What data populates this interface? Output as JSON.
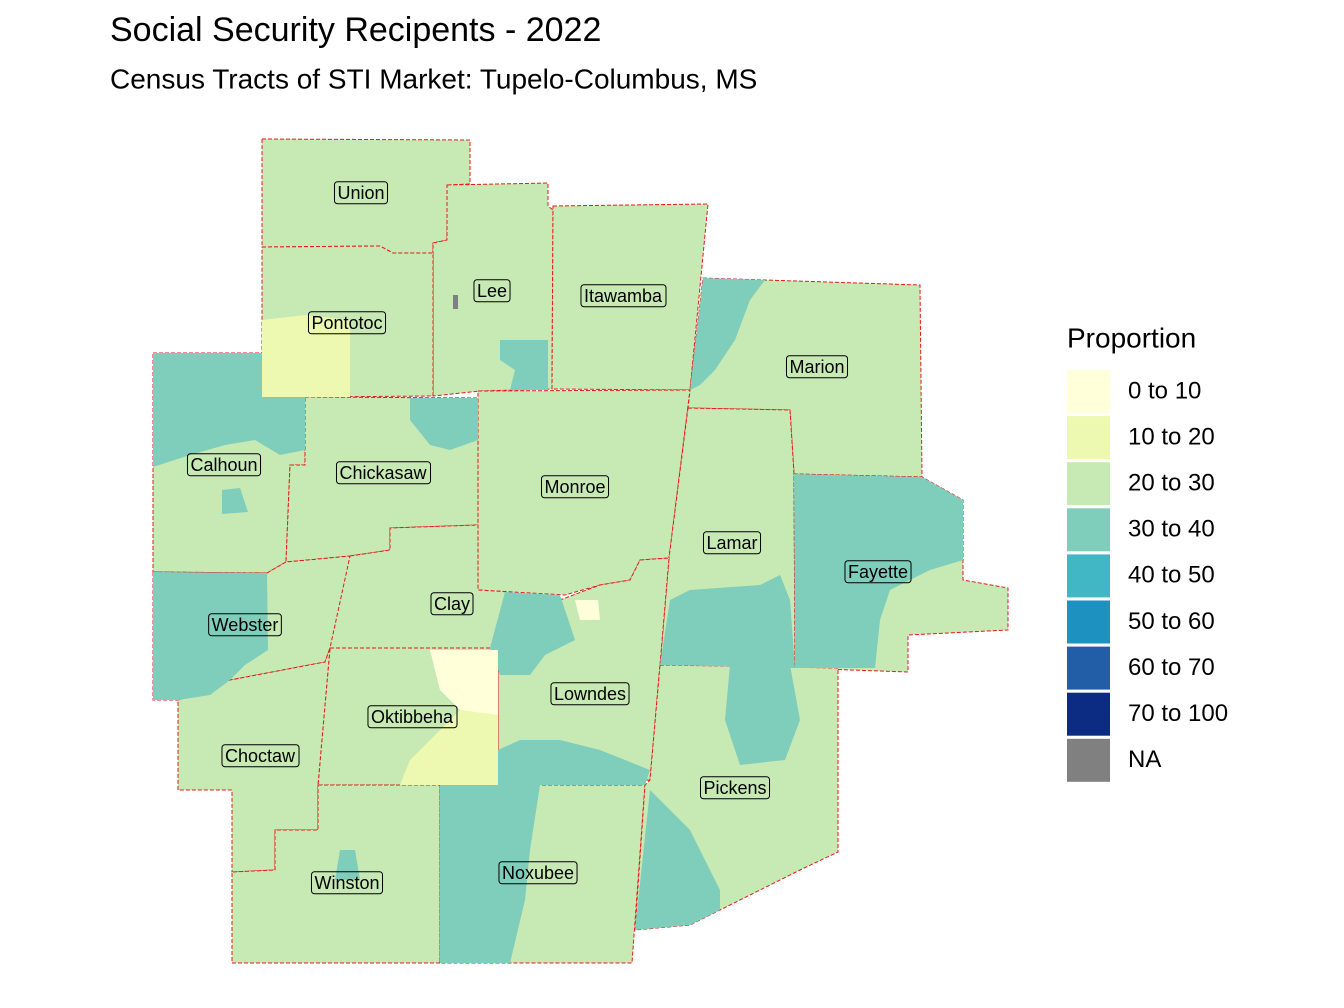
{
  "title": "Social Security Recipents - 2022",
  "subtitle": "Census Tracts of STI Market: Tupelo-Columbus, MS",
  "legend": {
    "title": "Proportion",
    "items": [
      {
        "label": "0 to 10",
        "color": "#ffffd9"
      },
      {
        "label": "10 to 20",
        "color": "#edf8b1"
      },
      {
        "label": "20 to 30",
        "color": "#c7e9b4"
      },
      {
        "label": "30 to 40",
        "color": "#7fcdbb"
      },
      {
        "label": "40 to 50",
        "color": "#41b6c4"
      },
      {
        "label": "50 to 60",
        "color": "#1d91c0"
      },
      {
        "label": "60 to 70",
        "color": "#225ea8"
      },
      {
        "label": "70 to 100",
        "color": "#0c2c84"
      },
      {
        "label": "NA",
        "color": "#808080"
      }
    ]
  },
  "counties": [
    "Union",
    "Lee",
    "Itawamba",
    "Pontotoc",
    "Marion",
    "Calhoun",
    "Chickasaw",
    "Monroe",
    "Lamar",
    "Fayette",
    "Clay",
    "Webster",
    "Lowndes",
    "Oktibbeha",
    "Choctaw",
    "Pickens",
    "Noxubee",
    "Winston"
  ]
}
